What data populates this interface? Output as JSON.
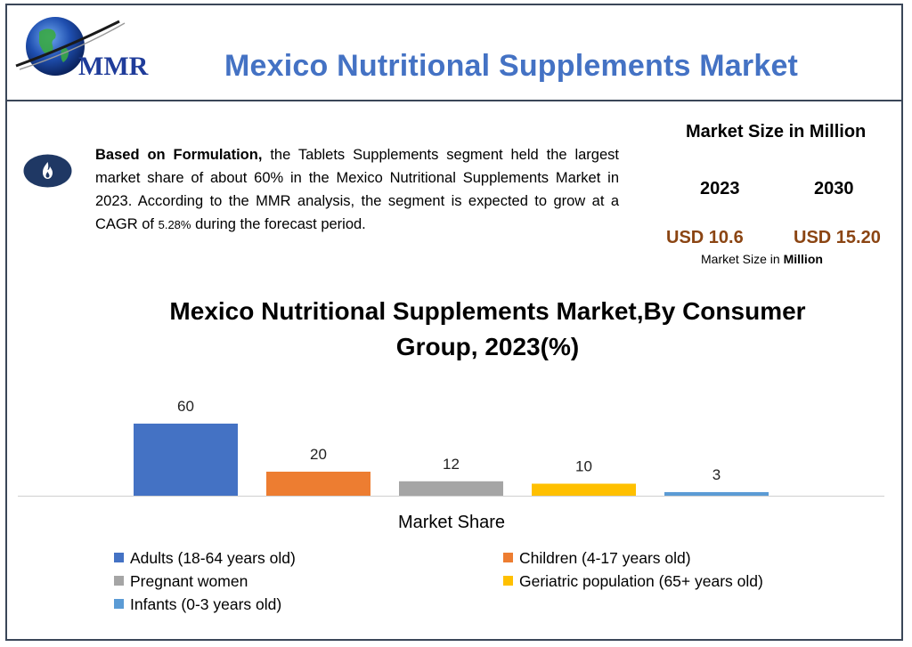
{
  "header": {
    "logo_text": "MMR",
    "title": "Mexico Nutritional Supplements Market"
  },
  "summary": {
    "icon": "fire-icon",
    "lead": "Based on Formulation,",
    "text_1": " the Tablets Supplements segment held the largest market share of about 60% in the Mexico Nutritional Supplements Market in 2023. According to the MMR analysis, the segment is expected to grow at a CAGR of ",
    "cagr": "5.28%",
    "text_2": " during the forecast period."
  },
  "market_size": {
    "heading": "Market Size in Million",
    "year_1": "2023",
    "year_2": "2030",
    "value_1": "USD 10.6",
    "value_2": "USD 15.20",
    "note_prefix": "Market Size in ",
    "note_bold": "Million"
  },
  "colors": {
    "title_blue": "#4472c4",
    "usd_brown": "#8b4513",
    "frame": "#3a4658"
  },
  "chart_data": {
    "type": "bar",
    "title": "Mexico Nutritional Supplements Market,By Consumer Group, 2023(%)",
    "xlabel": "Market Share",
    "ylabel": "",
    "ylim": [
      0,
      60
    ],
    "grid": false,
    "legend_position": "bottom",
    "categories": [
      "Adults (18-64 years old)",
      "Children (4-17 years old)",
      "Pregnant women",
      "Geriatric population (65+ years old)",
      "Infants (0-3 years old)"
    ],
    "values": [
      60,
      20,
      12,
      10,
      3
    ],
    "data_labels": [
      "60",
      "20",
      "12",
      "10",
      "3"
    ],
    "colors": [
      "#4472c4",
      "#ed7d31",
      "#a5a5a5",
      "#ffc000",
      "#5b9bd5"
    ]
  }
}
